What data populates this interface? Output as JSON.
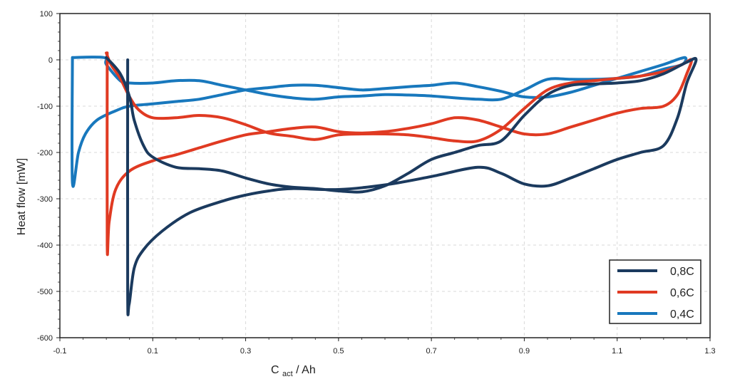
{
  "chart_data": {
    "type": "line",
    "xlabel_main": "C",
    "xlabel_sub": "act",
    "xlabel_unit": " / Ah",
    "ylabel": "Heat flow [mW]",
    "xlim": [
      -0.1,
      1.3
    ],
    "ylim": [
      -600,
      100
    ],
    "xticks": [
      -0.1,
      0.1,
      0.3,
      0.5,
      0.7,
      0.9,
      1.1,
      1.3
    ],
    "xtick_labels": [
      "-0.1",
      "0.1",
      "0.3",
      "0.5",
      "0.7",
      "0.9",
      "1.1",
      "1.3"
    ],
    "yticks": [
      100,
      0,
      -100,
      -200,
      -300,
      -400,
      -500,
      -600
    ],
    "ytick_labels": [
      "100",
      "0",
      "-100",
      "-200",
      "-300",
      "-400",
      "-500",
      "-600"
    ],
    "grid": true,
    "legend_position": "bottom-right",
    "series": [
      {
        "name": "0,8C",
        "color": "#1b3a5e",
        "points": [
          [
            0.046,
            0
          ],
          [
            0.046,
            -500
          ],
          [
            0.049,
            -528
          ],
          [
            0.06,
            -450
          ],
          [
            0.08,
            -410
          ],
          [
            0.12,
            -370
          ],
          [
            0.18,
            -330
          ],
          [
            0.25,
            -305
          ],
          [
            0.3,
            -292
          ],
          [
            0.35,
            -283
          ],
          [
            0.4,
            -278
          ],
          [
            0.5,
            -280
          ],
          [
            0.6,
            -270
          ],
          [
            0.7,
            -252
          ],
          [
            0.8,
            -232
          ],
          [
            0.85,
            -245
          ],
          [
            0.9,
            -268
          ],
          [
            0.95,
            -272
          ],
          [
            1.0,
            -255
          ],
          [
            1.05,
            -235
          ],
          [
            1.1,
            -215
          ],
          [
            1.15,
            -200
          ],
          [
            1.2,
            -185
          ],
          [
            1.23,
            -125
          ],
          [
            1.25,
            -50
          ],
          [
            1.27,
            0
          ],
          [
            1.25,
            -5
          ],
          [
            1.2,
            -30
          ],
          [
            1.15,
            -45
          ],
          [
            1.1,
            -50
          ],
          [
            1.05,
            -52
          ],
          [
            1.0,
            -55
          ],
          [
            0.95,
            -75
          ],
          [
            0.9,
            -120
          ],
          [
            0.85,
            -175
          ],
          [
            0.8,
            -185
          ],
          [
            0.75,
            -200
          ],
          [
            0.7,
            -215
          ],
          [
            0.65,
            -245
          ],
          [
            0.6,
            -272
          ],
          [
            0.55,
            -285
          ],
          [
            0.5,
            -283
          ],
          [
            0.45,
            -278
          ],
          [
            0.4,
            -275
          ],
          [
            0.35,
            -268
          ],
          [
            0.3,
            -255
          ],
          [
            0.25,
            -240
          ],
          [
            0.2,
            -235
          ],
          [
            0.15,
            -232
          ],
          [
            0.1,
            -210
          ],
          [
            0.08,
            -185
          ],
          [
            0.06,
            -130
          ],
          [
            0.05,
            -80
          ],
          [
            0.03,
            -30
          ],
          [
            0.0,
            5
          ]
        ]
      },
      {
        "name": "0,6C",
        "color": "#e03a22",
        "points": [
          [
            0.002,
            15
          ],
          [
            0.002,
            -400
          ],
          [
            0.006,
            -350
          ],
          [
            0.02,
            -280
          ],
          [
            0.05,
            -240
          ],
          [
            0.1,
            -218
          ],
          [
            0.15,
            -205
          ],
          [
            0.2,
            -190
          ],
          [
            0.25,
            -175
          ],
          [
            0.3,
            -162
          ],
          [
            0.35,
            -155
          ],
          [
            0.4,
            -148
          ],
          [
            0.45,
            -145
          ],
          [
            0.5,
            -155
          ],
          [
            0.55,
            -158
          ],
          [
            0.6,
            -155
          ],
          [
            0.65,
            -148
          ],
          [
            0.7,
            -138
          ],
          [
            0.75,
            -125
          ],
          [
            0.8,
            -130
          ],
          [
            0.85,
            -145
          ],
          [
            0.9,
            -160
          ],
          [
            0.95,
            -160
          ],
          [
            1.0,
            -145
          ],
          [
            1.05,
            -130
          ],
          [
            1.1,
            -115
          ],
          [
            1.15,
            -105
          ],
          [
            1.2,
            -100
          ],
          [
            1.23,
            -75
          ],
          [
            1.25,
            -30
          ],
          [
            1.26,
            0
          ],
          [
            1.24,
            -10
          ],
          [
            1.2,
            -25
          ],
          [
            1.15,
            -35
          ],
          [
            1.1,
            -40
          ],
          [
            1.05,
            -45
          ],
          [
            1.0,
            -50
          ],
          [
            0.95,
            -65
          ],
          [
            0.9,
            -105
          ],
          [
            0.85,
            -150
          ],
          [
            0.8,
            -175
          ],
          [
            0.75,
            -175
          ],
          [
            0.7,
            -168
          ],
          [
            0.65,
            -162
          ],
          [
            0.6,
            -160
          ],
          [
            0.55,
            -160
          ],
          [
            0.5,
            -162
          ],
          [
            0.45,
            -172
          ],
          [
            0.4,
            -165
          ],
          [
            0.35,
            -158
          ],
          [
            0.3,
            -140
          ],
          [
            0.25,
            -125
          ],
          [
            0.2,
            -120
          ],
          [
            0.15,
            -125
          ],
          [
            0.1,
            -125
          ],
          [
            0.07,
            -108
          ],
          [
            0.05,
            -80
          ],
          [
            0.03,
            -40
          ],
          [
            0.01,
            -10
          ],
          [
            0.0,
            15
          ]
        ]
      },
      {
        "name": "0,4C",
        "color": "#1878bd",
        "points": [
          [
            -0.073,
            5
          ],
          [
            -0.073,
            -265
          ],
          [
            -0.06,
            -200
          ],
          [
            -0.045,
            -160
          ],
          [
            -0.02,
            -130
          ],
          [
            0.02,
            -110
          ],
          [
            0.05,
            -100
          ],
          [
            0.1,
            -95
          ],
          [
            0.15,
            -90
          ],
          [
            0.2,
            -85
          ],
          [
            0.25,
            -75
          ],
          [
            0.3,
            -65
          ],
          [
            0.35,
            -60
          ],
          [
            0.4,
            -55
          ],
          [
            0.45,
            -55
          ],
          [
            0.5,
            -60
          ],
          [
            0.55,
            -65
          ],
          [
            0.6,
            -62
          ],
          [
            0.65,
            -58
          ],
          [
            0.7,
            -55
          ],
          [
            0.75,
            -50
          ],
          [
            0.8,
            -58
          ],
          [
            0.85,
            -68
          ],
          [
            0.9,
            -80
          ],
          [
            0.95,
            -80
          ],
          [
            1.0,
            -70
          ],
          [
            1.05,
            -55
          ],
          [
            1.1,
            -40
          ],
          [
            1.15,
            -25
          ],
          [
            1.2,
            -10
          ],
          [
            1.245,
            5
          ],
          [
            1.24,
            -10
          ],
          [
            1.2,
            -20
          ],
          [
            1.15,
            -35
          ],
          [
            1.1,
            -40
          ],
          [
            1.05,
            -42
          ],
          [
            1.0,
            -42
          ],
          [
            0.95,
            -42
          ],
          [
            0.9,
            -65
          ],
          [
            0.85,
            -85
          ],
          [
            0.8,
            -85
          ],
          [
            0.75,
            -82
          ],
          [
            0.7,
            -78
          ],
          [
            0.65,
            -76
          ],
          [
            0.6,
            -75
          ],
          [
            0.55,
            -78
          ],
          [
            0.5,
            -80
          ],
          [
            0.45,
            -85
          ],
          [
            0.4,
            -82
          ],
          [
            0.35,
            -75
          ],
          [
            0.3,
            -65
          ],
          [
            0.25,
            -55
          ],
          [
            0.2,
            -45
          ],
          [
            0.15,
            -45
          ],
          [
            0.1,
            -50
          ],
          [
            0.05,
            -50
          ],
          [
            0.03,
            -45
          ],
          [
            0.0,
            -10
          ],
          [
            -0.005,
            5
          ],
          [
            -0.073,
            5
          ]
        ]
      }
    ]
  }
}
